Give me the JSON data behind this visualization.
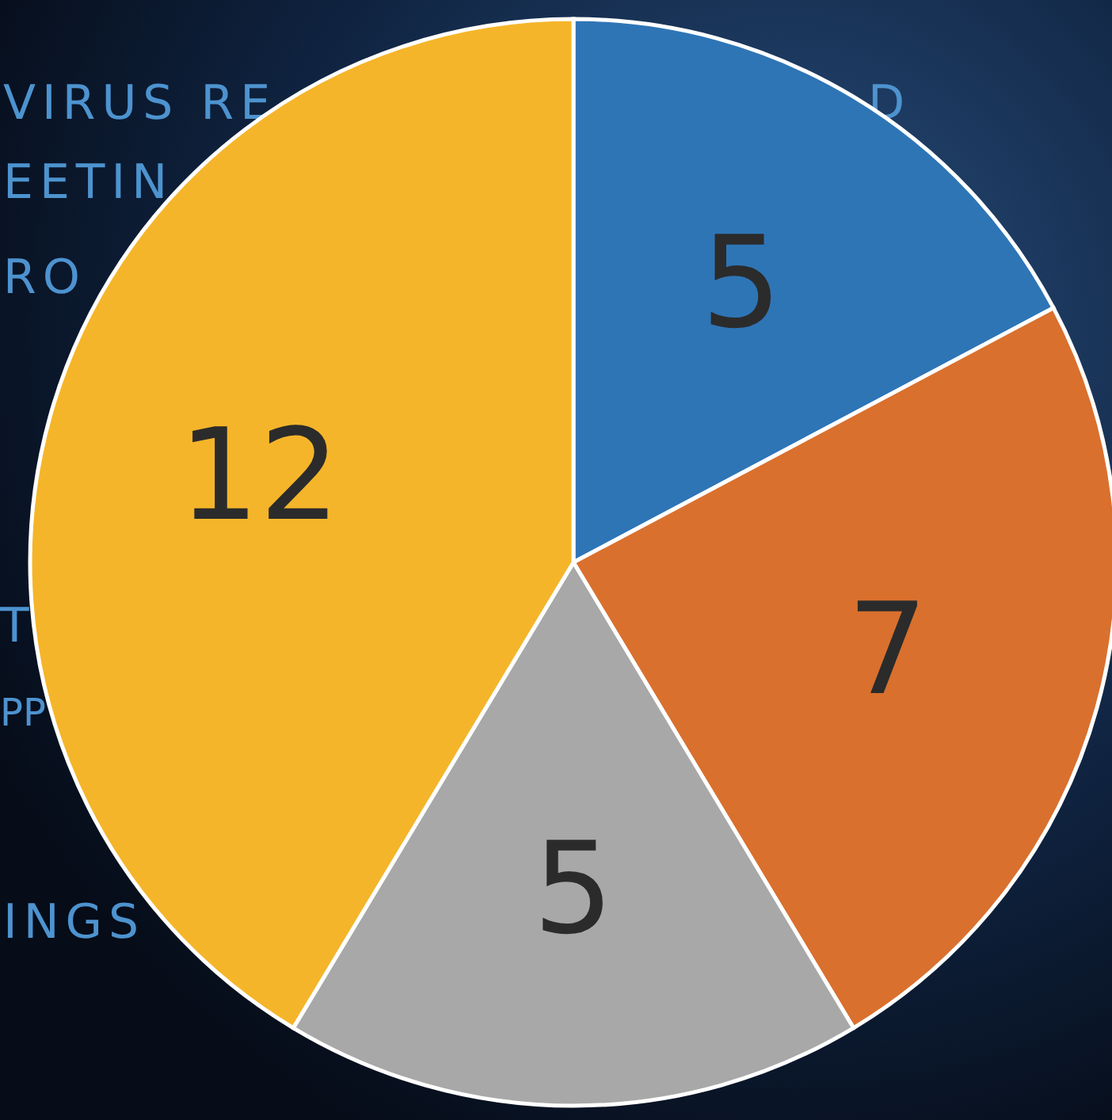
{
  "chart_data": {
    "type": "pie",
    "categories": [
      null,
      null,
      null,
      null
    ],
    "values": [
      5,
      7,
      5,
      12
    ],
    "colors": [
      "#2e75b6",
      "#d9702e",
      "#a8a8a8",
      "#f5b52a"
    ],
    "data_labels": true,
    "annotations": [
      "VIRUS RE",
      "D",
      "EETIN",
      "RO",
      "T",
      "PP",
      "INGS"
    ]
  }
}
